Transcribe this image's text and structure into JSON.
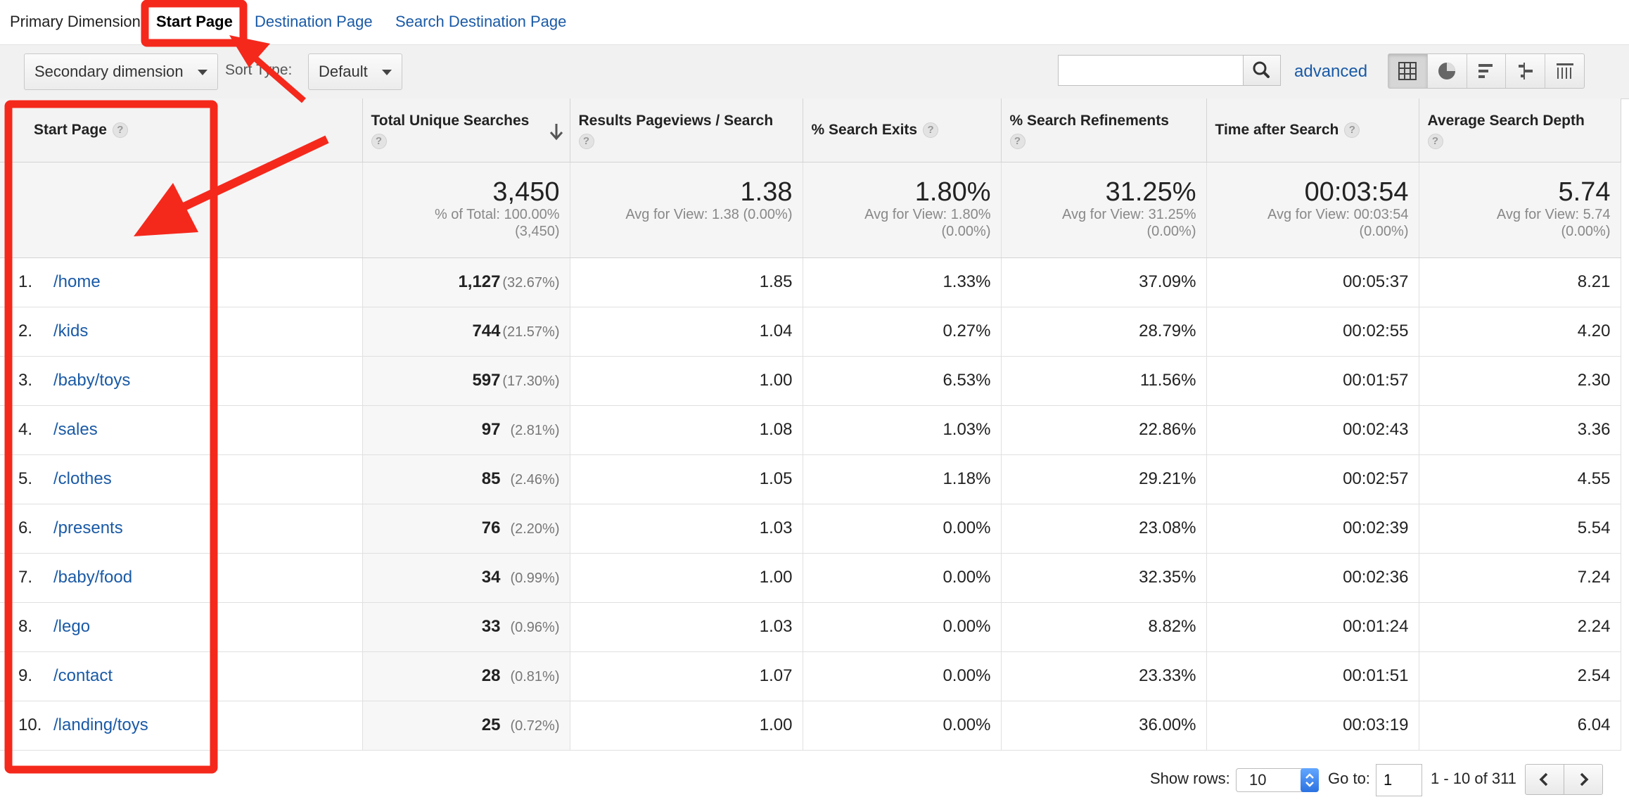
{
  "primary_dimension": {
    "label": "Primary Dimension:",
    "tabs": [
      {
        "label": "Start Page",
        "active": true
      },
      {
        "label": "Destination Page",
        "active": false
      },
      {
        "label": "Search Destination Page",
        "active": false
      }
    ]
  },
  "toolbar": {
    "secondary_dimension": "Secondary dimension",
    "sort_type_label": "Sort Type:",
    "sort_type_value": "Default",
    "search_value": "",
    "advanced_label": "advanced",
    "views": [
      "table-view-icon",
      "pie-view-icon",
      "performance-view-icon",
      "comparison-view-icon",
      "pivot-view-icon"
    ]
  },
  "table": {
    "headers": [
      "Start Page",
      "Total Unique Searches",
      "Results Pageviews / Search",
      "% Search Exits",
      "% Search Refinements",
      "Time after Search",
      "Average Search Depth"
    ],
    "totals": [
      {
        "value": "3,450",
        "sub1": "% of Total: 100.00%",
        "sub2": "(3,450)"
      },
      {
        "value": "1.38",
        "sub1": "Avg for View: 1.38 (0.00%)",
        "sub2": ""
      },
      {
        "value": "1.80%",
        "sub1": "Avg for View: 1.80%",
        "sub2": "(0.00%)"
      },
      {
        "value": "31.25%",
        "sub1": "Avg for View: 31.25%",
        "sub2": "(0.00%)"
      },
      {
        "value": "00:03:54",
        "sub1": "Avg for View: 00:03:54",
        "sub2": "(0.00%)"
      },
      {
        "value": "5.74",
        "sub1": "Avg for View: 5.74",
        "sub2": "(0.00%)"
      }
    ],
    "rows": [
      {
        "rank": "1.",
        "page": "/home",
        "searches": "1,127",
        "share": "(32.67%)",
        "pv": "1.85",
        "exits": "1.33%",
        "refine": "37.09%",
        "time": "00:05:37",
        "depth": "8.21"
      },
      {
        "rank": "2.",
        "page": "/kids",
        "searches": "744",
        "share": "(21.57%)",
        "pv": "1.04",
        "exits": "0.27%",
        "refine": "28.79%",
        "time": "00:02:55",
        "depth": "4.20"
      },
      {
        "rank": "3.",
        "page": "/baby/toys",
        "searches": "597",
        "share": "(17.30%)",
        "pv": "1.00",
        "exits": "6.53%",
        "refine": "11.56%",
        "time": "00:01:57",
        "depth": "2.30"
      },
      {
        "rank": "4.",
        "page": "/sales",
        "searches": "97",
        "share": "(2.81%)",
        "pv": "1.08",
        "exits": "1.03%",
        "refine": "22.86%",
        "time": "00:02:43",
        "depth": "3.36"
      },
      {
        "rank": "5.",
        "page": "/clothes",
        "searches": "85",
        "share": "(2.46%)",
        "pv": "1.05",
        "exits": "1.18%",
        "refine": "29.21%",
        "time": "00:02:57",
        "depth": "4.55"
      },
      {
        "rank": "6.",
        "page": "/presents",
        "searches": "76",
        "share": "(2.20%)",
        "pv": "1.03",
        "exits": "0.00%",
        "refine": "23.08%",
        "time": "00:02:39",
        "depth": "5.54"
      },
      {
        "rank": "7.",
        "page": "/baby/food",
        "searches": "34",
        "share": "(0.99%)",
        "pv": "1.00",
        "exits": "0.00%",
        "refine": "32.35%",
        "time": "00:02:36",
        "depth": "7.24"
      },
      {
        "rank": "8.",
        "page": "/lego",
        "searches": "33",
        "share": "(0.96%)",
        "pv": "1.03",
        "exits": "0.00%",
        "refine": "8.82%",
        "time": "00:01:24",
        "depth": "2.24"
      },
      {
        "rank": "9.",
        "page": "/contact",
        "searches": "28",
        "share": "(0.81%)",
        "pv": "1.07",
        "exits": "0.00%",
        "refine": "23.33%",
        "time": "00:01:51",
        "depth": "2.54"
      },
      {
        "rank": "10.",
        "page": "/landing/toys",
        "searches": "25",
        "share": "(0.72%)",
        "pv": "1.00",
        "exits": "0.00%",
        "refine": "36.00%",
        "time": "00:03:19",
        "depth": "6.04"
      }
    ]
  },
  "pagination": {
    "show_rows_label": "Show rows:",
    "rows_value": "10",
    "goto_label": "Go to:",
    "goto_value": "1",
    "range_text": "1 - 10 of 311"
  },
  "colors": {
    "annotation_red": "#f5281c",
    "link_blue": "#1a5aa6"
  }
}
